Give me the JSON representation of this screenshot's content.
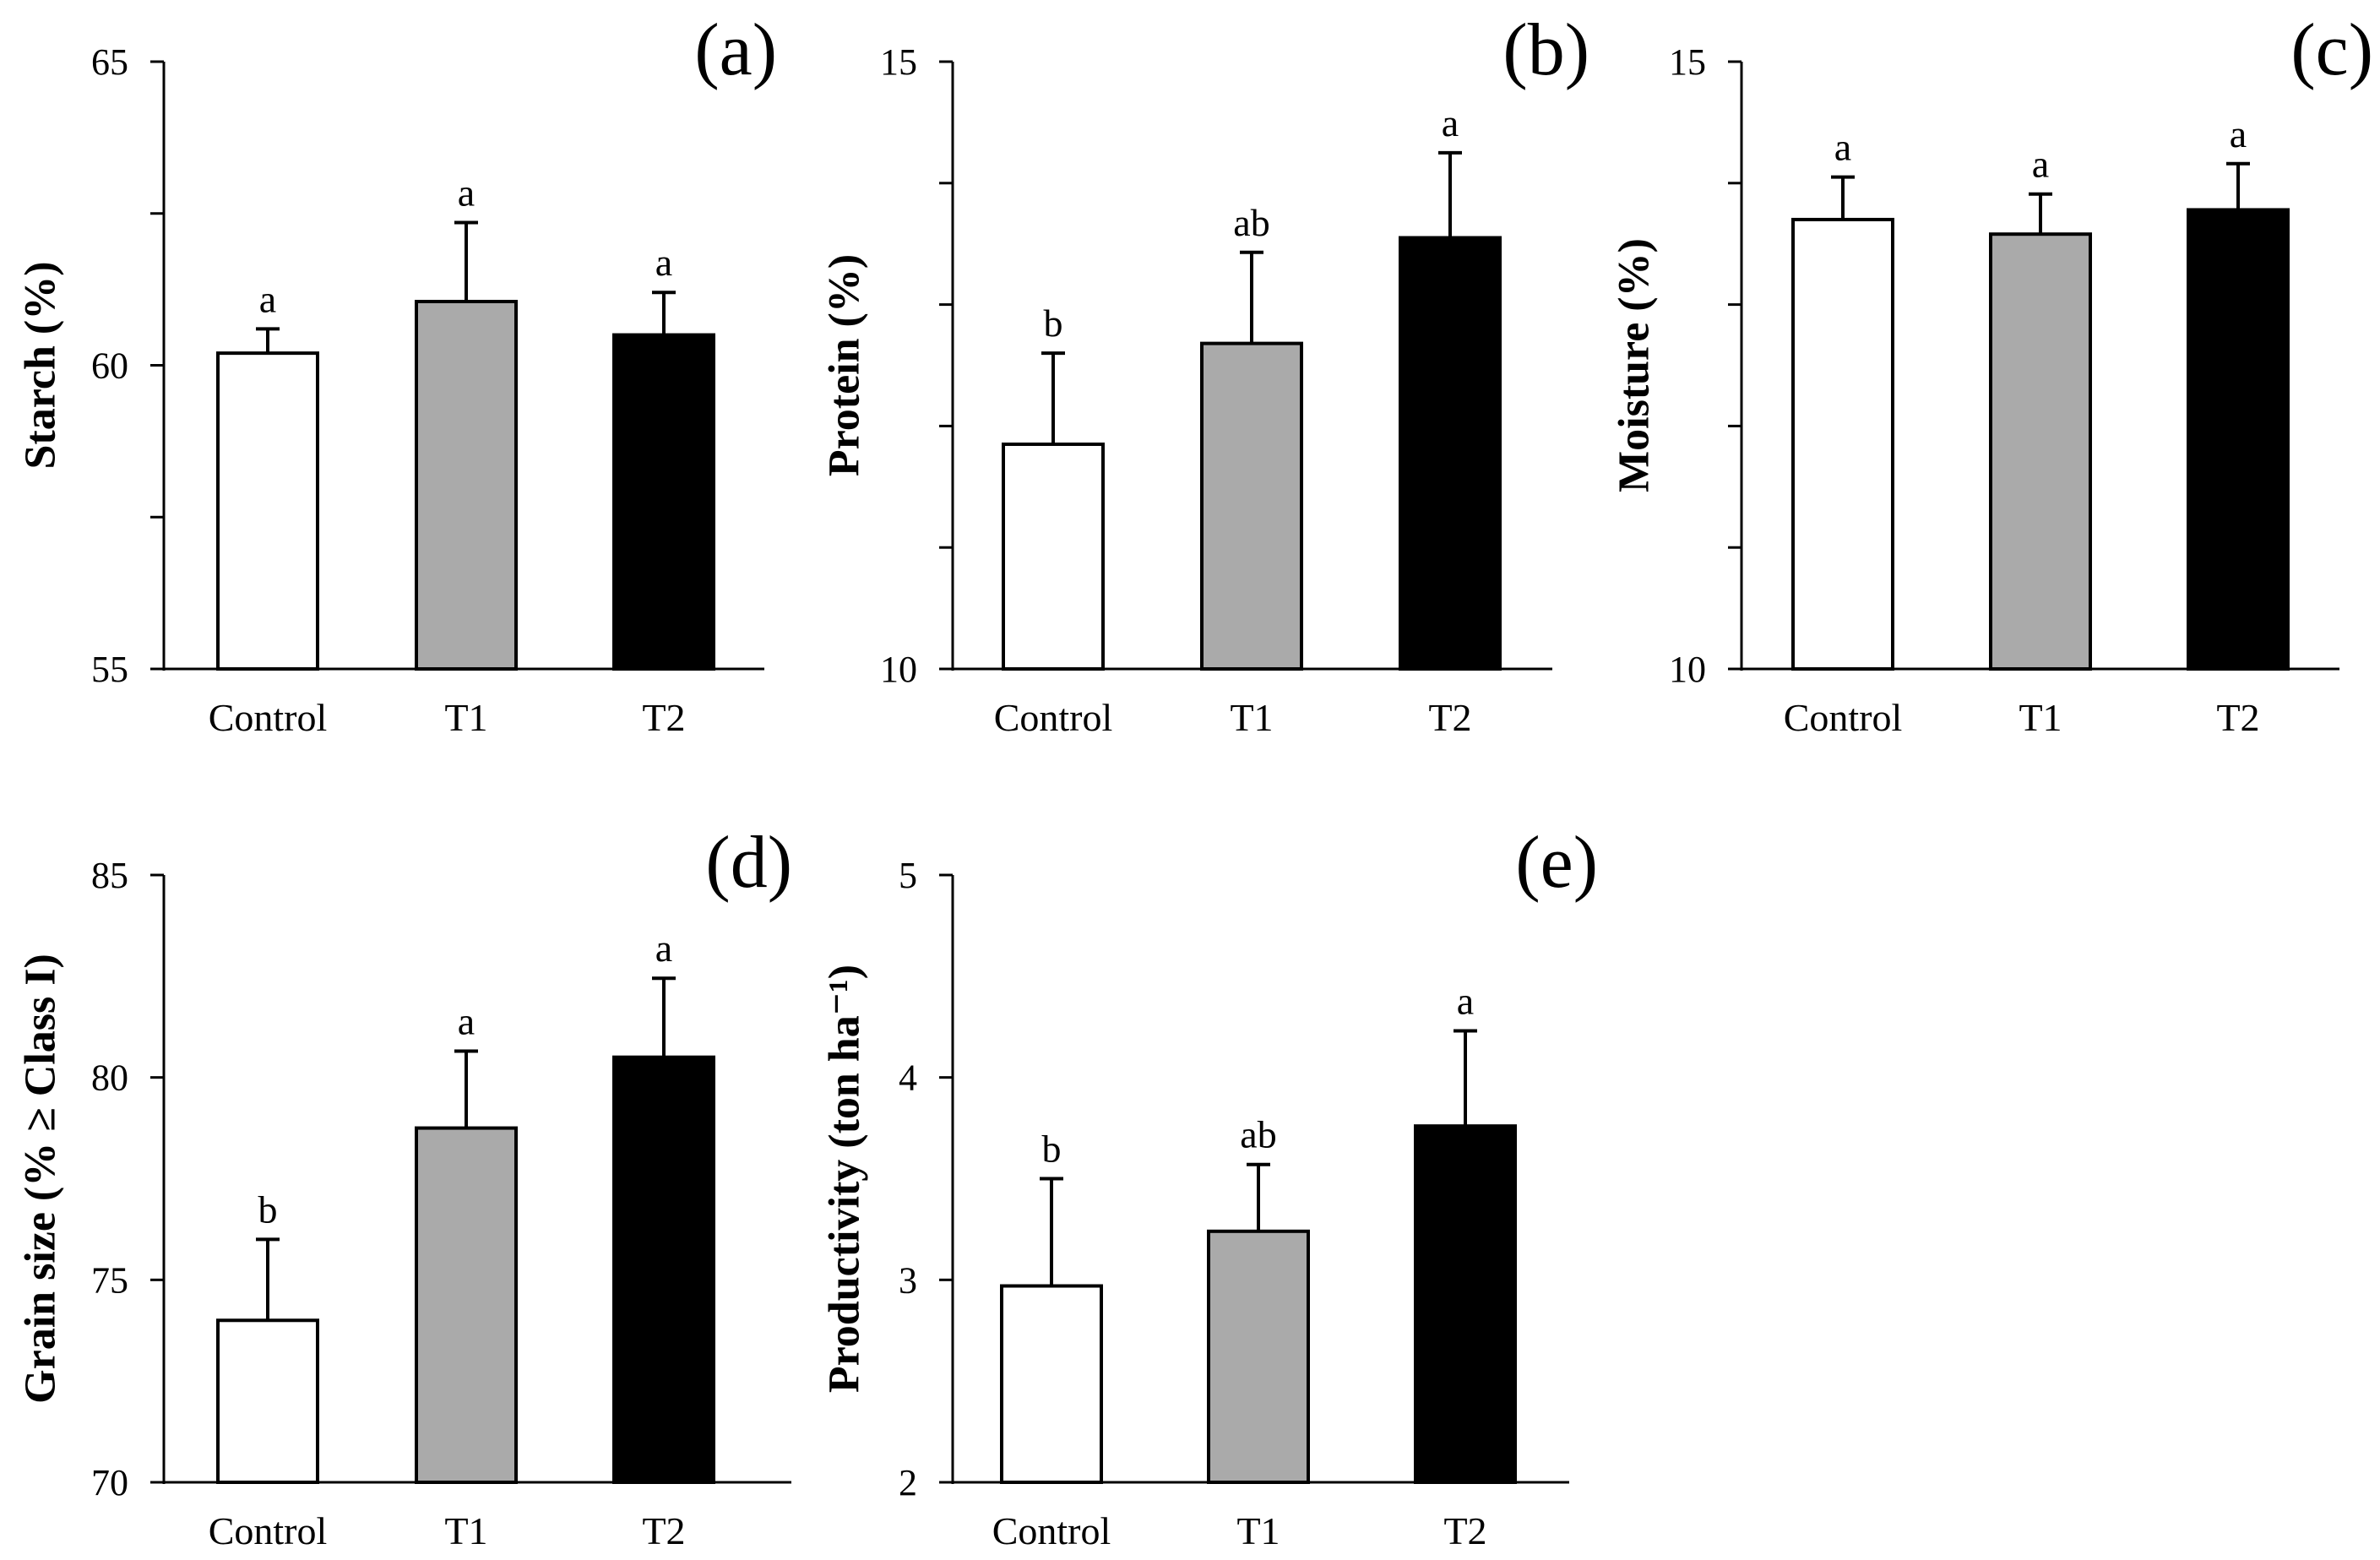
{
  "colors": {
    "Control": "#ffffff",
    "T1": "#aaaaaa",
    "T2": "#000000",
    "axis": "#000000"
  },
  "chart_data": [
    {
      "type": "bar",
      "panel": "(a)",
      "categories": [
        "Control",
        "T1",
        "T2"
      ],
      "values": [
        60.2,
        61.05,
        60.5
      ],
      "errors": [
        0.4,
        1.3,
        0.7
      ],
      "significance": [
        "a",
        "a",
        "a"
      ],
      "ylabel": "Starch (%)",
      "ylim": [
        55,
        65
      ],
      "yticks": [
        55,
        60,
        65
      ],
      "yticklabels": [
        "55",
        "60",
        "65"
      ],
      "minor_ticks": [
        57.5,
        62.5
      ]
    },
    {
      "type": "bar",
      "panel": "(b)",
      "categories": [
        "Control",
        "T1",
        "T2"
      ],
      "values": [
        11.85,
        12.68,
        13.55
      ],
      "errors": [
        0.75,
        0.75,
        0.7
      ],
      "significance": [
        "b",
        "ab",
        "a"
      ],
      "ylabel": "Protein (%)",
      "ylim": [
        10,
        15
      ],
      "yticks": [
        10,
        15
      ],
      "yticklabels": [
        "10",
        "15"
      ],
      "minor_ticks": [
        11,
        12,
        13,
        14
      ]
    },
    {
      "type": "bar",
      "panel": "(c)",
      "categories": [
        "Control",
        "T1",
        "T2"
      ],
      "values": [
        13.7,
        13.58,
        13.78
      ],
      "errors": [
        0.35,
        0.33,
        0.38
      ],
      "significance": [
        "a",
        "a",
        "a"
      ],
      "ylabel": "Moisture (%)",
      "ylim": [
        10,
        15
      ],
      "yticks": [
        10,
        15
      ],
      "yticklabels": [
        "10",
        "15"
      ],
      "minor_ticks": [
        11,
        12,
        13,
        14
      ]
    },
    {
      "type": "bar",
      "panel": "(d)",
      "categories": [
        "Control",
        "T1",
        "T2"
      ],
      "values": [
        74.0,
        78.75,
        80.5
      ],
      "errors": [
        2.0,
        1.9,
        1.95
      ],
      "significance": [
        "b",
        "a",
        "a"
      ],
      "ylabel": "Grain size (% ≥ Class I)",
      "ylim": [
        70,
        85
      ],
      "yticks": [
        70,
        75,
        80,
        85
      ],
      "yticklabels": [
        "70",
        "75",
        "80",
        "85"
      ],
      "minor_ticks": []
    },
    {
      "type": "bar",
      "panel": "(e)",
      "categories": [
        "Control",
        "T1",
        "T2"
      ],
      "values": [
        2.97,
        3.24,
        3.76
      ],
      "errors": [
        0.53,
        0.33,
        0.47
      ],
      "significance": [
        "b",
        "ab",
        "a"
      ],
      "ylabel": "Productivity (ton ha⁻¹)",
      "ylim": [
        2,
        5
      ],
      "yticks": [
        2,
        3,
        4,
        5
      ],
      "yticklabels": [
        "2",
        "3",
        "4",
        "5"
      ],
      "minor_ticks": []
    }
  ]
}
